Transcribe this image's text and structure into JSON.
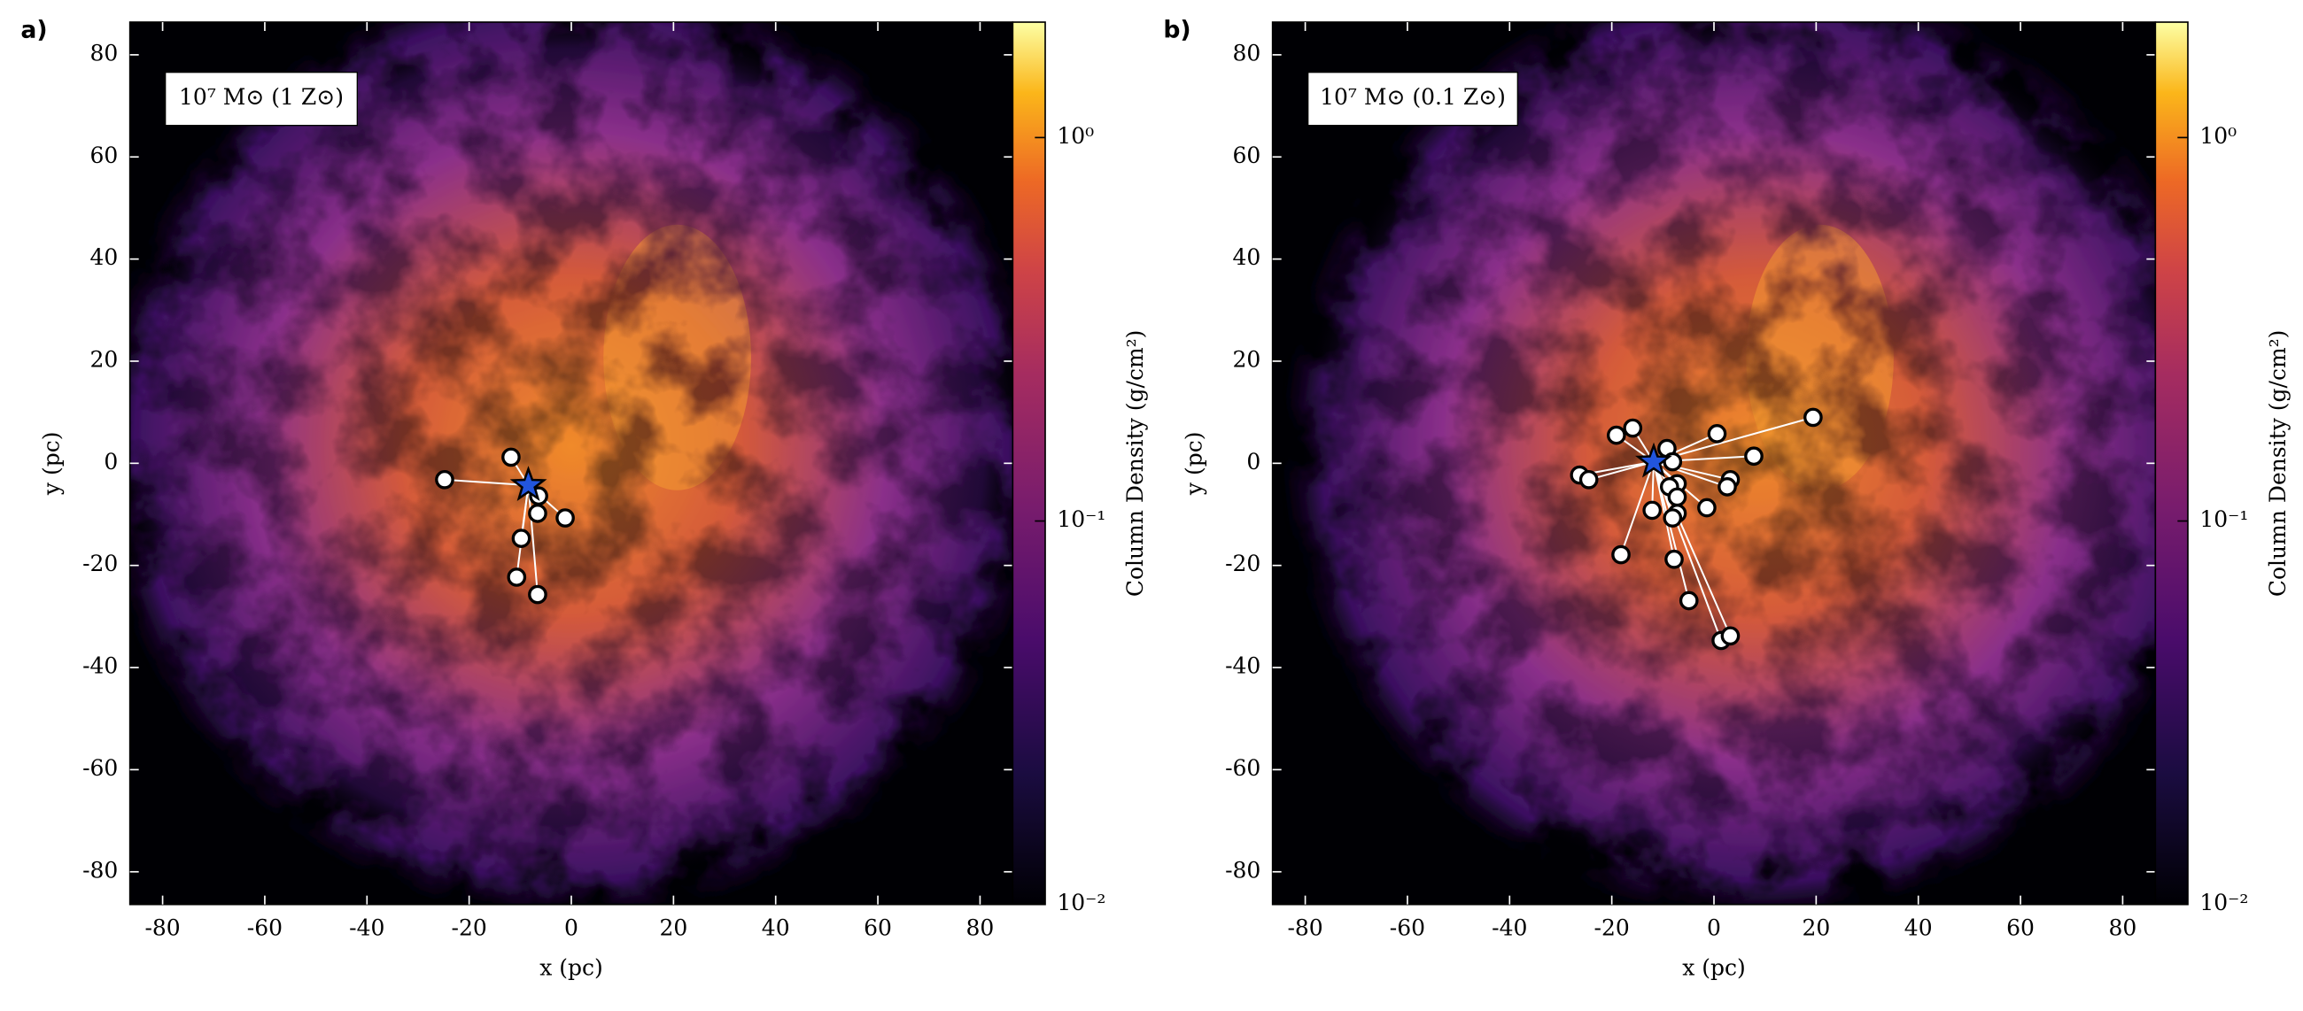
{
  "chart_data": [
    {
      "type": "scatter",
      "panel_label": "a)",
      "annotation": "10⁷ M⊙ (1 Z⊙)",
      "xlabel": "x  (pc)",
      "ylabel": "y  (pc)",
      "x": [
        -24.8,
        -11.8,
        -6.4,
        -6.6,
        -1.2,
        -9.8,
        -10.7,
        -6.6
      ],
      "values": [
        -3.2,
        1.2,
        -6.4,
        -9.8,
        -10.7,
        -14.7,
        -22.3,
        -25.7
      ],
      "color": "#ffffff",
      "star": {
        "x": -8.4,
        "y": -4.3,
        "color": "#2255dd"
      },
      "xlim": [
        -86.4,
        86.4
      ],
      "ylim": [
        -86.4,
        86.4
      ],
      "xticks": [
        -80,
        -60,
        -40,
        -20,
        0,
        20,
        40,
        60,
        80
      ],
      "yticks": [
        -80,
        -60,
        -40,
        -20,
        0,
        20,
        40,
        60,
        80
      ],
      "colorbar": {
        "label": "Column Density (g/cm²)",
        "log": true,
        "lim": [
          0.01,
          2
        ],
        "ticks": [
          {
            "value": 1,
            "label": "10⁰"
          },
          {
            "value": 0.1,
            "label": "10⁻¹"
          },
          {
            "value": 0.01,
            "label": "10⁻²"
          }
        ]
      }
    },
    {
      "type": "scatter",
      "panel_label": "b)",
      "annotation": "10⁷ M⊙ (0.1 Z⊙)",
      "xlabel": "x  (pc)",
      "ylabel": "y  (pc)",
      "x": [
        -26.3,
        -24.5,
        -19.1,
        -15.9,
        -9.2,
        -8.1,
        0.6,
        19.4,
        7.8,
        3.2,
        2.6,
        -7.2,
        -8.7,
        -7.2,
        -1.4,
        -7.2,
        -8.1,
        -12.1,
        -18.2,
        -7.8,
        -4.9,
        1.4,
        3.2
      ],
      "values": [
        -2.3,
        -3.2,
        5.5,
        6.9,
        2.9,
        0.3,
        5.8,
        9.0,
        1.4,
        -3.2,
        -4.6,
        -4.0,
        -4.6,
        -6.6,
        -8.7,
        -9.8,
        -10.7,
        -9.2,
        -17.9,
        -18.8,
        -26.9,
        -34.7,
        -33.8
      ],
      "color": "#ffffff",
      "star": {
        "x": -11.8,
        "y": 0.3,
        "color": "#2255dd"
      },
      "xlim": [
        -86.4,
        86.4
      ],
      "ylim": [
        -86.4,
        86.4
      ],
      "xticks": [
        -80,
        -60,
        -40,
        -20,
        0,
        20,
        40,
        60,
        80
      ],
      "yticks": [
        -80,
        -60,
        -40,
        -20,
        0,
        20,
        40,
        60,
        80
      ],
      "colorbar": {
        "label": "Column Density (g/cm²)",
        "log": true,
        "lim": [
          0.01,
          2
        ],
        "ticks": [
          {
            "value": 1,
            "label": "10⁰"
          },
          {
            "value": 0.1,
            "label": "10⁻¹"
          },
          {
            "value": 0.01,
            "label": "10⁻²"
          }
        ]
      }
    }
  ]
}
